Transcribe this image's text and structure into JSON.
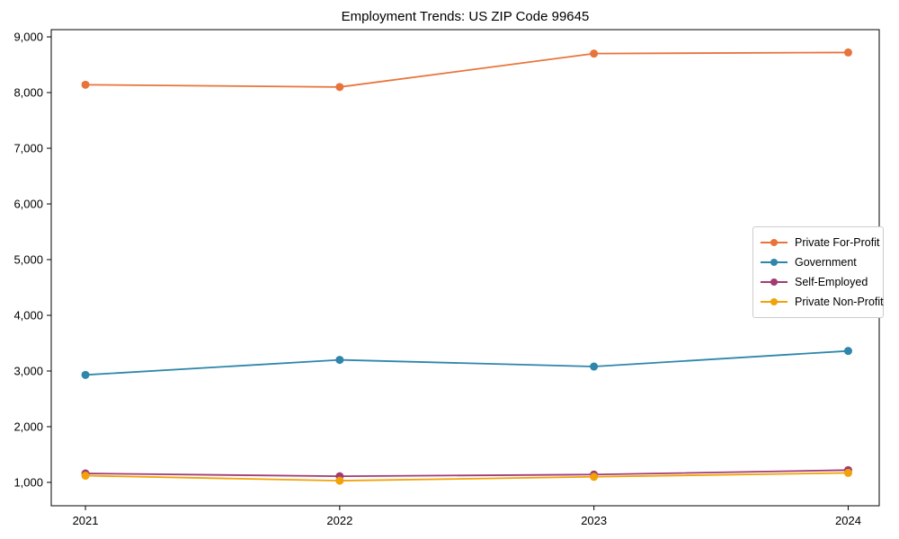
{
  "figure": {
    "title": "Employment Trends: US ZIP Code 99645"
  },
  "chart_data": {
    "type": "line",
    "title": "Employment Trends: US ZIP Code 99645",
    "x": [
      "2021",
      "2022",
      "2023",
      "2024"
    ],
    "series": [
      {
        "name": "Private For-Profit",
        "color": "#E8743B",
        "values": [
          8140,
          8100,
          8700,
          8720
        ]
      },
      {
        "name": "Government",
        "color": "#2E86AB",
        "values": [
          2930,
          3200,
          3080,
          3360
        ]
      },
      {
        "name": "Self-Employed",
        "color": "#A23B72",
        "values": [
          1160,
          1110,
          1140,
          1220
        ]
      },
      {
        "name": "Private Non-Profit",
        "color": "#F1A208",
        "values": [
          1120,
          1030,
          1100,
          1170
        ]
      }
    ],
    "xlabel": "",
    "ylabel": "",
    "ylim": [
      580,
      9130
    ],
    "yticks": [
      1000,
      2000,
      3000,
      4000,
      5000,
      6000,
      7000,
      8000,
      9000
    ],
    "ytick_format": "comma",
    "grid": false,
    "legend_position": "center-right",
    "marker": "circle",
    "line_width": 1.8,
    "marker_radius": 4.5,
    "axis_color": "#000000",
    "text_color": "#000000",
    "background": "#ffffff"
  }
}
